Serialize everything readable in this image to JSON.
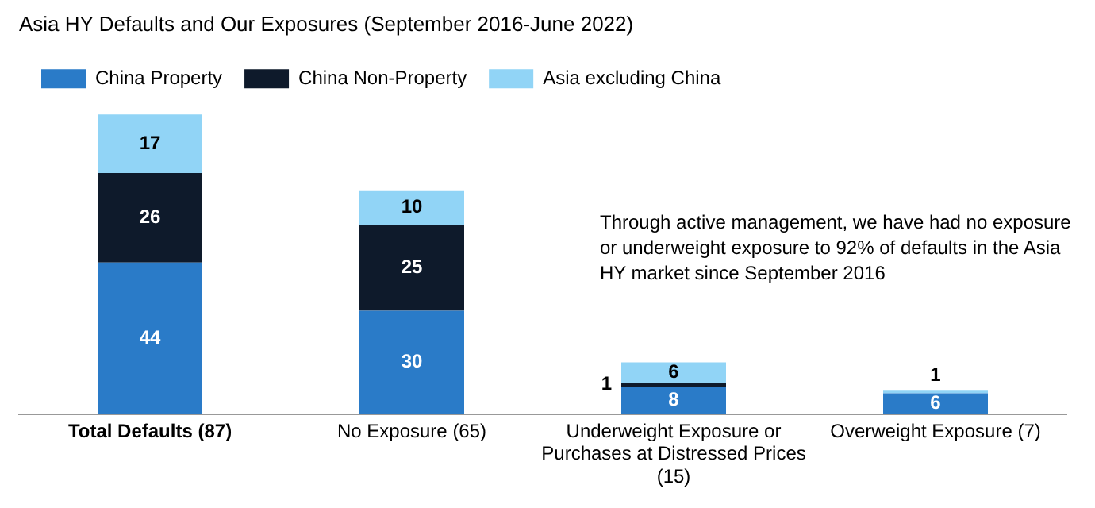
{
  "chart_data": {
    "type": "bar",
    "title": "Asia HY Defaults and Our Exposures (September 2016-June 2022)",
    "stacked": true,
    "legend": "top left",
    "categories": [
      "Total Defaults (87)",
      "No Exposure (65)",
      "Underweight Exposure or Purchases at Distressed Prices (15)",
      "Overweight Exposure (7)"
    ],
    "series": [
      {
        "name": "China Property",
        "color": "#2a7bc8",
        "values": [
          44,
          30,
          8,
          6
        ],
        "value_labels": [
          "44",
          "30",
          "8",
          "6"
        ]
      },
      {
        "name": "China Non-Property",
        "color": "#0e1a2b",
        "values": [
          26,
          25,
          1,
          0
        ],
        "value_labels": [
          "26",
          "25",
          "1",
          null
        ]
      },
      {
        "name": "Asia excluding China",
        "color": "#91d4f6",
        "values": [
          17,
          10,
          6,
          1
        ],
        "value_labels": [
          "17",
          "10",
          "6",
          "1"
        ]
      }
    ],
    "annotations": [
      "Through active management, we have had no exposure or underweight exposure to 92% of defaults in the Asia HY market since September 2016"
    ]
  }
}
